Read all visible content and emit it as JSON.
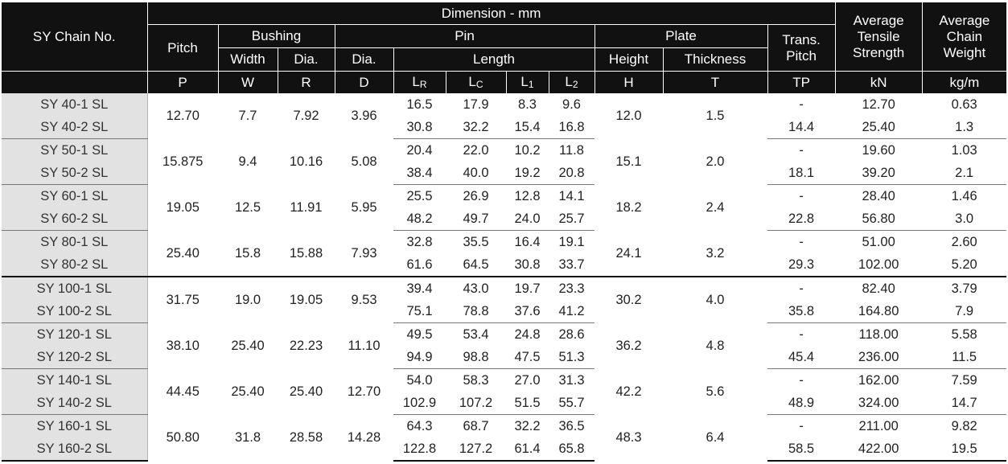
{
  "header": {
    "chain_no": "SY Chain No.",
    "dimension": "Dimension - mm",
    "pitch": "Pitch",
    "bushing": "Bushing",
    "pin": "Pin",
    "plate": "Plate",
    "trans_pitch_line1": "Trans.",
    "trans_pitch_line2": "Pitch",
    "tensile_line1": "Average",
    "tensile_line2": "Tensile",
    "tensile_line3": "Strength",
    "weight_line1": "Average",
    "weight_line2": "Chain",
    "weight_line3": "Weight",
    "width": "Width",
    "bush_dia": "Dia.",
    "pin_dia": "Dia.",
    "length": "Length",
    "height": "Height",
    "thickness": "Thickness",
    "sym_p": "P",
    "sym_w": "W",
    "sym_r": "R",
    "sym_d": "D",
    "sym_lr_main": "L",
    "sym_lr_sub": "R",
    "sym_lc_main": "L",
    "sym_lc_sub": "C",
    "sym_l1_main": "L",
    "sym_l1_sub": "1",
    "sym_l2_main": "L",
    "sym_l2_sub": "2",
    "sym_h": "H",
    "sym_t": "T",
    "sym_tp": "TP",
    "unit_kn": "kN",
    "unit_kgm": "kg/m"
  },
  "groups": [
    {
      "pitch": "12.70",
      "width": "7.7",
      "dia": "7.92",
      "pin_dia": "3.96",
      "height": "12.0",
      "thickness": "1.5",
      "rows": [
        {
          "name": "SY 40-1 SL",
          "lr": "16.5",
          "lc": "17.9",
          "l1": "8.3",
          "l2": "9.6",
          "tp": "-",
          "tensile": "12.70",
          "weight": "0.63"
        },
        {
          "name": "SY 40-2 SL",
          "lr": "30.8",
          "lc": "32.2",
          "l1": "15.4",
          "l2": "16.8",
          "tp": "14.4",
          "tensile": "25.40",
          "weight": "1.3"
        }
      ]
    },
    {
      "pitch": "15.875",
      "width": "9.4",
      "dia": "10.16",
      "pin_dia": "5.08",
      "height": "15.1",
      "thickness": "2.0",
      "rows": [
        {
          "name": "SY 50-1 SL",
          "lr": "20.4",
          "lc": "22.0",
          "l1": "10.2",
          "l2": "11.8",
          "tp": "-",
          "tensile": "19.60",
          "weight": "1.03"
        },
        {
          "name": "SY 50-2 SL",
          "lr": "38.4",
          "lc": "40.0",
          "l1": "19.2",
          "l2": "20.8",
          "tp": "18.1",
          "tensile": "39.20",
          "weight": "2.1"
        }
      ]
    },
    {
      "pitch": "19.05",
      "width": "12.5",
      "dia": "11.91",
      "pin_dia": "5.95",
      "height": "18.2",
      "thickness": "2.4",
      "rows": [
        {
          "name": "SY 60-1 SL",
          "lr": "25.5",
          "lc": "26.9",
          "l1": "12.8",
          "l2": "14.1",
          "tp": "-",
          "tensile": "28.40",
          "weight": "1.46"
        },
        {
          "name": "SY 60-2 SL",
          "lr": "48.2",
          "lc": "49.7",
          "l1": "24.0",
          "l2": "25.7",
          "tp": "22.8",
          "tensile": "56.80",
          "weight": "3.0"
        }
      ]
    },
    {
      "pitch": "25.40",
      "width": "15.8",
      "dia": "15.88",
      "pin_dia": "7.93",
      "height": "24.1",
      "thickness": "3.2",
      "rows": [
        {
          "name": "SY 80-1 SL",
          "lr": "32.8",
          "lc": "35.5",
          "l1": "16.4",
          "l2": "19.1",
          "tp": "-",
          "tensile": "51.00",
          "weight": "2.60"
        },
        {
          "name": "SY 80-2 SL",
          "lr": "61.6",
          "lc": "64.5",
          "l1": "30.8",
          "l2": "33.7",
          "tp": "29.3",
          "tensile": "102.00",
          "weight": "5.20"
        }
      ]
    },
    {
      "pitch": "31.75",
      "width": "19.0",
      "dia": "19.05",
      "pin_dia": "9.53",
      "height": "30.2",
      "thickness": "4.0",
      "rows": [
        {
          "name": "SY 100-1 SL",
          "lr": "39.4",
          "lc": "43.0",
          "l1": "19.7",
          "l2": "23.3",
          "tp": "-",
          "tensile": "82.40",
          "weight": "3.79"
        },
        {
          "name": "SY 100-2 SL",
          "lr": "75.1",
          "lc": "78.8",
          "l1": "37.6",
          "l2": "41.2",
          "tp": "35.8",
          "tensile": "164.80",
          "weight": "7.9"
        }
      ]
    },
    {
      "pitch": "38.10",
      "width": "25.40",
      "dia": "22.23",
      "pin_dia": "11.10",
      "height": "36.2",
      "thickness": "4.8",
      "rows": [
        {
          "name": "SY 120-1 SL",
          "lr": "49.5",
          "lc": "53.4",
          "l1": "24.8",
          "l2": "28.6",
          "tp": "-",
          "tensile": "118.00",
          "weight": "5.58"
        },
        {
          "name": "SY 120-2 SL",
          "lr": "94.9",
          "lc": "98.8",
          "l1": "47.5",
          "l2": "51.3",
          "tp": "45.4",
          "tensile": "236.00",
          "weight": "11.5"
        }
      ]
    },
    {
      "pitch": "44.45",
      "width": "25.40",
      "dia": "25.40",
      "pin_dia": "12.70",
      "height": "42.2",
      "thickness": "5.6",
      "rows": [
        {
          "name": "SY 140-1 SL",
          "lr": "54.0",
          "lc": "58.3",
          "l1": "27.0",
          "l2": "31.3",
          "tp": "-",
          "tensile": "162.00",
          "weight": "7.59"
        },
        {
          "name": "SY 140-2 SL",
          "lr": "102.9",
          "lc": "107.2",
          "l1": "51.5",
          "l2": "55.7",
          "tp": "48.9",
          "tensile": "324.00",
          "weight": "14.7"
        }
      ]
    },
    {
      "pitch": "50.80",
      "width": "31.8",
      "dia": "28.58",
      "pin_dia": "14.28",
      "height": "48.3",
      "thickness": "6.4",
      "rows": [
        {
          "name": "SY 160-1 SL",
          "lr": "64.3",
          "lc": "68.7",
          "l1": "32.2",
          "l2": "36.5",
          "tp": "-",
          "tensile": "211.00",
          "weight": "9.82"
        },
        {
          "name": "SY 160-2 SL",
          "lr": "122.8",
          "lc": "127.2",
          "l1": "61.4",
          "l2": "65.8",
          "tp": "58.5",
          "tensile": "422.00",
          "weight": "19.5"
        }
      ]
    }
  ]
}
